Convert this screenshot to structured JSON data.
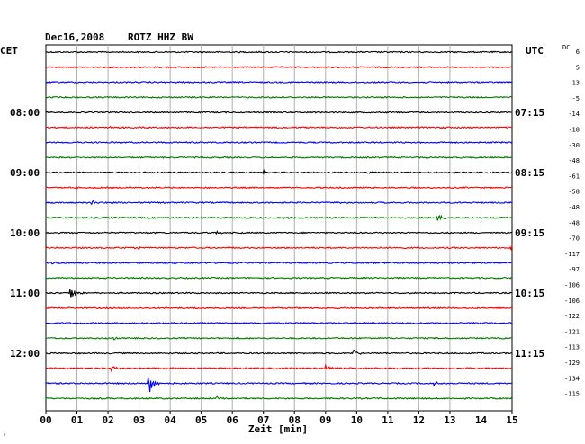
{
  "header": {
    "date": "Dec16,2008",
    "station": "ROTZ HHZ BW",
    "left_tz": "CET",
    "right_tz": "UTC",
    "dc_label": "DC"
  },
  "footer": {
    "xlabel": "Zeit [min]",
    "corner_mark": "ˣ"
  },
  "colors": {
    "trace_cycle": [
      "#000000",
      "#ff0000",
      "#0000ff",
      "#007700"
    ],
    "grid": "#b0b0b0",
    "frame": "#000000"
  },
  "chart_data": {
    "type": "line",
    "title": "Dec16,2008   ROTZ HHZ BW",
    "xlabel": "Zeit [min]",
    "x_ticks": [
      "00",
      "01",
      "02",
      "03",
      "04",
      "05",
      "06",
      "07",
      "08",
      "09",
      "10",
      "11",
      "12",
      "13",
      "14",
      "15"
    ],
    "xlim": [
      0,
      15
    ],
    "grid": true,
    "rows": 24,
    "left_hour_labels": [
      {
        "row": 4,
        "label": "08:00"
      },
      {
        "row": 8,
        "label": "09:00"
      },
      {
        "row": 12,
        "label": "10:00"
      },
      {
        "row": 16,
        "label": "11:00"
      },
      {
        "row": 20,
        "label": "12:00"
      }
    ],
    "right_hour_labels": [
      {
        "row": 4,
        "label": "07:15"
      },
      {
        "row": 8,
        "label": "08:15"
      },
      {
        "row": 12,
        "label": "09:15"
      },
      {
        "row": 16,
        "label": "10:15"
      },
      {
        "row": 20,
        "label": "11:15"
      }
    ],
    "dc_offsets": [
      "6",
      "5",
      "13",
      "-5",
      "-14",
      "-18",
      "-30",
      "-48",
      "-61",
      "-58",
      "-48",
      "-48",
      "-70",
      "-117",
      "-97",
      "-106",
      "-106",
      "-122",
      "-121",
      "-113",
      "-129",
      "-134",
      "-115"
    ],
    "events": [
      {
        "row": 5,
        "minute": 2.0,
        "amp": 2
      },
      {
        "row": 5,
        "minute": 7.4,
        "amp": 1.5
      },
      {
        "row": 5,
        "minute": 12.7,
        "amp": 1.5
      },
      {
        "row": 8,
        "minute": 7.0,
        "amp": 2.5
      },
      {
        "row": 8,
        "minute": 10.3,
        "amp": 2
      },
      {
        "row": 9,
        "minute": 1.0,
        "amp": 1.5
      },
      {
        "row": 10,
        "minute": 1.5,
        "amp": 2
      },
      {
        "row": 10,
        "minute": 9.5,
        "amp": 1.5
      },
      {
        "row": 11,
        "minute": 7.6,
        "amp": 2.5
      },
      {
        "row": 11,
        "minute": 12.6,
        "amp": 4
      },
      {
        "row": 12,
        "minute": 5.5,
        "amp": 1.5
      },
      {
        "row": 13,
        "minute": 3.0,
        "amp": 1.5
      },
      {
        "row": 13,
        "minute": 15.0,
        "amp": 4
      },
      {
        "row": 14,
        "minute": 0.2,
        "amp": 2
      },
      {
        "row": 16,
        "minute": 0.8,
        "amp": 8
      },
      {
        "row": 17,
        "minute": 4.8,
        "amp": 1.5
      },
      {
        "row": 19,
        "minute": 2.2,
        "amp": 2
      },
      {
        "row": 20,
        "minute": 9.9,
        "amp": 5
      },
      {
        "row": 21,
        "minute": 2.1,
        "amp": 3
      },
      {
        "row": 21,
        "minute": 9.0,
        "amp": 5
      },
      {
        "row": 22,
        "minute": 3.3,
        "amp": 14
      },
      {
        "row": 22,
        "minute": 12.5,
        "amp": 3
      },
      {
        "row": 23,
        "minute": 5.5,
        "amp": 1.5
      }
    ]
  }
}
